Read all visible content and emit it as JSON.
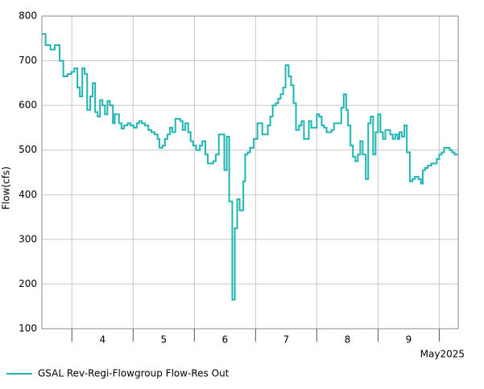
{
  "chart_data": {
    "type": "step-line",
    "ylabel": "Flow(cfs)",
    "xlabel": "May2025",
    "xlim": [
      3.51,
      10.31
    ],
    "xticks": [
      4,
      5,
      6,
      7,
      8,
      9,
      10
    ],
    "xtick_labels": [
      {
        "value": 4.5,
        "label": "4"
      },
      {
        "value": 5.5,
        "label": "5"
      },
      {
        "value": 6.5,
        "label": "6"
      },
      {
        "value": 7.5,
        "label": "7"
      },
      {
        "value": 8.5,
        "label": "8"
      },
      {
        "value": 9.5,
        "label": "9"
      }
    ],
    "ylim": [
      100,
      800
    ],
    "yticks": [
      100,
      200,
      300,
      400,
      500,
      600,
      700,
      800
    ],
    "grid": true,
    "series": [
      {
        "name": "GSAL Rev-Regi-Flowgroup Flow-Res Out",
        "color": "#1fb5b3",
        "x": [
          3.51,
          3.57,
          3.65,
          3.72,
          3.8,
          3.86,
          3.93,
          3.99,
          4.04,
          4.09,
          4.13,
          4.17,
          4.21,
          4.25,
          4.3,
          4.34,
          4.38,
          4.42,
          4.46,
          4.5,
          4.54,
          4.58,
          4.62,
          4.67,
          4.7,
          4.77,
          4.81,
          4.85,
          4.91,
          4.96,
          5.01,
          5.06,
          5.1,
          5.14,
          5.19,
          5.25,
          5.3,
          5.35,
          5.4,
          5.43,
          5.48,
          5.52,
          5.56,
          5.6,
          5.64,
          5.69,
          5.77,
          5.81,
          5.85,
          5.9,
          5.94,
          5.98,
          6.03,
          6.09,
          6.13,
          6.18,
          6.22,
          6.31,
          6.35,
          6.4,
          6.49,
          6.53,
          6.57,
          6.62,
          6.66,
          6.7,
          6.74,
          6.8,
          6.83,
          6.87,
          6.91,
          6.97,
          7.03,
          7.11,
          7.2,
          7.24,
          7.28,
          7.33,
          7.37,
          7.41,
          7.45,
          7.49,
          7.54,
          7.58,
          7.62,
          7.66,
          7.71,
          7.75,
          7.79,
          7.87,
          7.91,
          7.95,
          8.0,
          8.04,
          8.08,
          8.12,
          8.16,
          8.24,
          8.28,
          8.36,
          8.4,
          8.44,
          8.48,
          8.51,
          8.55,
          8.59,
          8.63,
          8.67,
          8.71,
          8.75,
          8.8,
          8.84,
          8.88,
          8.92,
          8.96,
          9.0,
          9.04,
          9.08,
          9.12,
          9.2,
          9.24,
          9.28,
          9.32,
          9.35,
          9.39,
          9.43,
          9.47,
          9.52,
          9.56,
          9.6,
          9.66,
          9.7,
          9.73,
          9.77,
          9.81,
          9.87,
          9.92,
          9.96,
          10.0,
          10.04,
          10.08,
          10.13,
          10.17,
          10.21,
          10.25
        ],
        "values": [
          760,
          735,
          725,
          735,
          700,
          665,
          670,
          675,
          683,
          640,
          620,
          683,
          670,
          590,
          620,
          650,
          585,
          575,
          612,
          600,
          580,
          610,
          600,
          560,
          580,
          560,
          548,
          555,
          560,
          555,
          550,
          560,
          565,
          560,
          555,
          545,
          540,
          535,
          525,
          505,
          510,
          525,
          535,
          550,
          540,
          570,
          565,
          545,
          560,
          540,
          520,
          510,
          500,
          510,
          520,
          490,
          470,
          475,
          490,
          535,
          455,
          530,
          385,
          165,
          325,
          390,
          365,
          430,
          490,
          495,
          505,
          525,
          560,
          535,
          555,
          575,
          600,
          605,
          615,
          625,
          640,
          690,
          665,
          645,
          605,
          545,
          555,
          565,
          525,
          565,
          550,
          550,
          580,
          575,
          555,
          550,
          540,
          545,
          560,
          560,
          595,
          625,
          590,
          555,
          510,
          485,
          475,
          490,
          520,
          490,
          435,
          560,
          575,
          490,
          540,
          580,
          540,
          525,
          545,
          535,
          525,
          535,
          525,
          540,
          530,
          555,
          495,
          430,
          435,
          440,
          435,
          425,
          455,
          460,
          465,
          470,
          470,
          480,
          490,
          495,
          505,
          505,
          500,
          495,
          490
        ]
      }
    ]
  }
}
